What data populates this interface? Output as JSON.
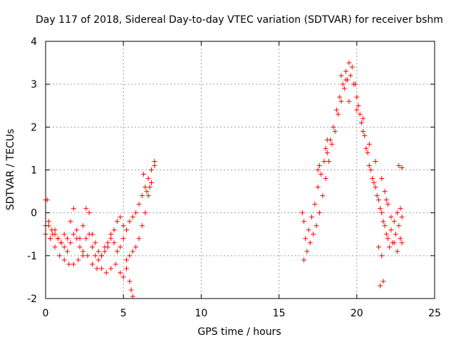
{
  "chart_data": {
    "type": "scatter",
    "title": "Day 117 of 2018, Sidereal Day-to-day VTEC variation (SDTVAR) for receiver bshm",
    "xlabel": "GPS time / hours",
    "ylabel": "SDTVAR / TECUs",
    "xlim": [
      0,
      25
    ],
    "ylim": [
      -2,
      4
    ],
    "xticks": [
      "0",
      "5",
      "10",
      "15",
      "20",
      "25"
    ],
    "yticks": [
      "-2",
      "-1",
      "0",
      "1",
      "2",
      "3",
      "4"
    ],
    "grid": true,
    "marker": "+",
    "color": "#ff0000",
    "series": [
      {
        "name": "SDTVAR",
        "x": [
          0.0,
          0.1,
          0.2,
          0.3,
          0.45,
          0.6,
          0.8,
          1.0,
          1.2,
          1.4,
          1.6,
          1.8,
          2.0,
          2.2,
          2.4,
          2.6,
          2.8,
          3.0,
          3.2,
          3.4,
          3.6,
          3.8,
          4.0,
          4.2,
          4.4,
          4.6,
          4.8,
          5.0,
          5.2,
          5.4,
          5.6,
          5.8,
          6.0,
          6.2,
          6.4,
          6.6,
          6.8,
          7.0,
          0.0,
          0.2,
          0.4,
          0.6,
          0.8,
          1.0,
          1.2,
          1.4,
          1.6,
          1.8,
          2.0,
          2.2,
          2.4,
          2.6,
          2.8,
          3.0,
          3.2,
          3.4,
          3.6,
          3.8,
          4.0,
          4.2,
          4.4,
          4.6,
          4.8,
          5.0,
          0.0,
          0.3,
          0.6,
          0.9,
          1.2,
          1.5,
          1.8,
          2.1,
          2.4,
          2.7,
          3.0,
          3.3,
          3.6,
          3.9,
          4.2,
          4.5,
          4.8,
          5.0,
          5.2,
          5.4,
          5.5,
          5.6,
          5.2,
          5.4,
          5.6,
          5.8,
          6.0,
          6.2,
          6.4,
          6.6,
          6.8,
          7.0,
          6.3,
          6.5,
          6.7,
          16.6,
          16.8,
          17.0,
          17.2,
          17.4,
          17.6,
          17.8,
          18.0,
          18.2,
          18.4,
          18.6,
          18.8,
          19.0,
          19.2,
          19.4,
          19.6,
          19.8,
          20.0,
          20.2,
          20.4,
          20.6,
          20.8,
          21.0,
          21.2,
          21.4,
          21.6,
          21.8,
          22.0,
          22.2,
          22.4,
          22.6,
          22.8,
          16.7,
          16.9,
          17.1,
          17.3,
          17.5,
          17.7,
          17.9,
          18.1,
          18.3,
          18.5,
          18.7,
          18.9,
          19.1,
          19.3,
          19.5,
          19.7,
          19.9,
          20.1,
          20.3,
          20.5,
          20.7,
          20.9,
          21.1,
          21.3,
          21.5,
          21.7,
          21.9,
          22.1,
          22.3,
          22.5,
          22.7,
          22.9,
          16.5,
          16.6,
          17.5,
          17.6,
          18.0,
          18.1,
          19.0,
          19.3,
          19.5,
          20.0,
          20.4,
          20.8,
          21.2,
          21.6,
          21.8,
          21.9,
          22.0,
          22.2,
          22.4,
          22.6,
          22.8,
          22.9,
          21.5,
          21.7,
          22.7,
          22.9,
          21.4,
          21.6
        ],
        "y": [
          0.3,
          0.3,
          -0.3,
          -0.6,
          -0.5,
          -0.4,
          -0.6,
          -0.7,
          -0.5,
          -0.6,
          -0.2,
          0.1,
          -0.4,
          -0.6,
          -0.3,
          0.1,
          0.0,
          -0.5,
          -0.7,
          -0.9,
          -1.0,
          -0.8,
          -0.7,
          -0.5,
          -0.4,
          -0.2,
          -0.1,
          -0.3,
          -0.4,
          -0.2,
          -0.1,
          0.0,
          0.2,
          0.4,
          0.6,
          0.8,
          1.0,
          1.2,
          -0.5,
          -0.2,
          -0.4,
          -0.5,
          -0.6,
          -0.7,
          -0.8,
          -0.9,
          -0.7,
          -0.5,
          -0.6,
          -0.8,
          -0.9,
          -0.6,
          -0.5,
          -0.8,
          -1.0,
          -1.1,
          -1.0,
          -0.9,
          -0.8,
          -0.6,
          -0.7,
          -0.9,
          -0.8,
          -0.6,
          -0.3,
          -0.6,
          -0.8,
          -1.0,
          -1.1,
          -1.2,
          -1.2,
          -1.1,
          -1.0,
          -1.0,
          -1.2,
          -1.3,
          -1.3,
          -1.4,
          -1.3,
          -1.2,
          -1.4,
          -1.5,
          -1.3,
          -1.6,
          -1.8,
          -1.95,
          -1.1,
          -1.0,
          -0.9,
          -0.8,
          -0.6,
          -0.3,
          0.0,
          0.4,
          0.7,
          1.1,
          0.9,
          0.5,
          0.6,
          -1.1,
          -0.9,
          -0.7,
          -0.5,
          -0.3,
          0.0,
          0.4,
          0.8,
          1.2,
          1.6,
          1.9,
          2.3,
          2.6,
          2.9,
          3.1,
          3.2,
          3.0,
          2.7,
          2.3,
          1.9,
          1.5,
          1.1,
          0.8,
          0.6,
          0.3,
          0.0,
          -0.3,
          -0.6,
          -0.4,
          -0.2,
          0.0,
          0.1,
          -0.6,
          -0.4,
          -0.1,
          0.2,
          0.6,
          0.9,
          1.2,
          1.4,
          1.7,
          2.0,
          2.4,
          2.7,
          3.0,
          3.3,
          3.5,
          3.4,
          3.0,
          2.5,
          2.1,
          1.8,
          1.4,
          1.0,
          0.7,
          0.4,
          0.1,
          -0.2,
          -0.5,
          -0.8,
          -0.7,
          -0.5,
          -0.3,
          -0.1,
          0.0,
          -0.2,
          1.0,
          1.1,
          1.5,
          1.7,
          3.2,
          3.1,
          2.6,
          2.4,
          2.2,
          1.6,
          1.2,
          0.8,
          0.5,
          0.3,
          0.2,
          -0.1,
          -0.7,
          -0.9,
          -0.6,
          -0.7,
          -1.7,
          -1.6,
          1.1,
          1.05,
          -0.8,
          -1.0
        ]
      }
    ]
  }
}
